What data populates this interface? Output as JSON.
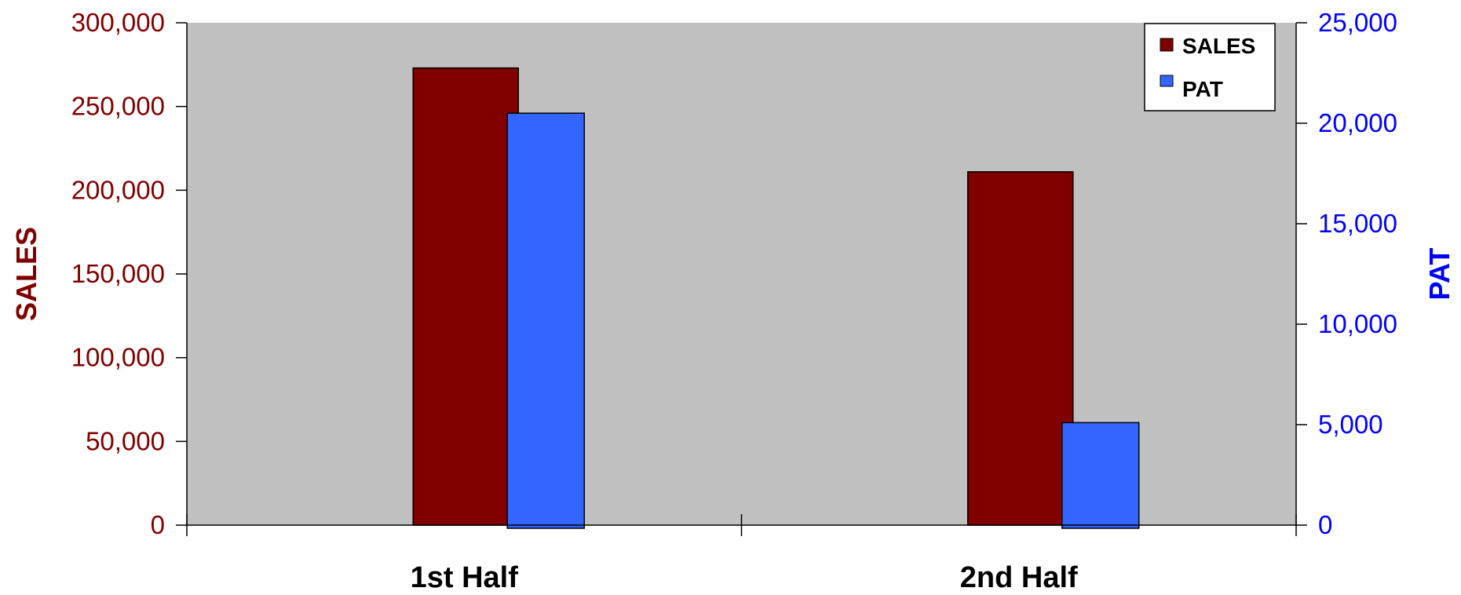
{
  "chart_data": {
    "type": "bar",
    "categories": [
      "1st Half",
      "2nd Half"
    ],
    "series": [
      {
        "name": "SALES",
        "axis": "left",
        "color": "#800000",
        "values": [
          273000,
          211000
        ]
      },
      {
        "name": "PAT",
        "axis": "right",
        "color": "#3366FF",
        "values": [
          20500,
          5100
        ]
      }
    ],
    "y_left": {
      "label": "SALES",
      "color": "#800000",
      "range": [
        0,
        300000
      ],
      "ticks": [
        "0",
        "50,000",
        "100,000",
        "150,000",
        "200,000",
        "250,000",
        "300,000"
      ]
    },
    "y_right": {
      "label": "PAT",
      "color": "#0000FF",
      "range": [
        0,
        25000
      ],
      "ticks": [
        "0",
        "5,000",
        "10,000",
        "15,000",
        "20,000",
        "25,000"
      ]
    },
    "plot_background": "#C0C0C0",
    "grid": false,
    "legend": {
      "position": "top-right",
      "entries": [
        "SALES",
        "PAT"
      ]
    }
  }
}
